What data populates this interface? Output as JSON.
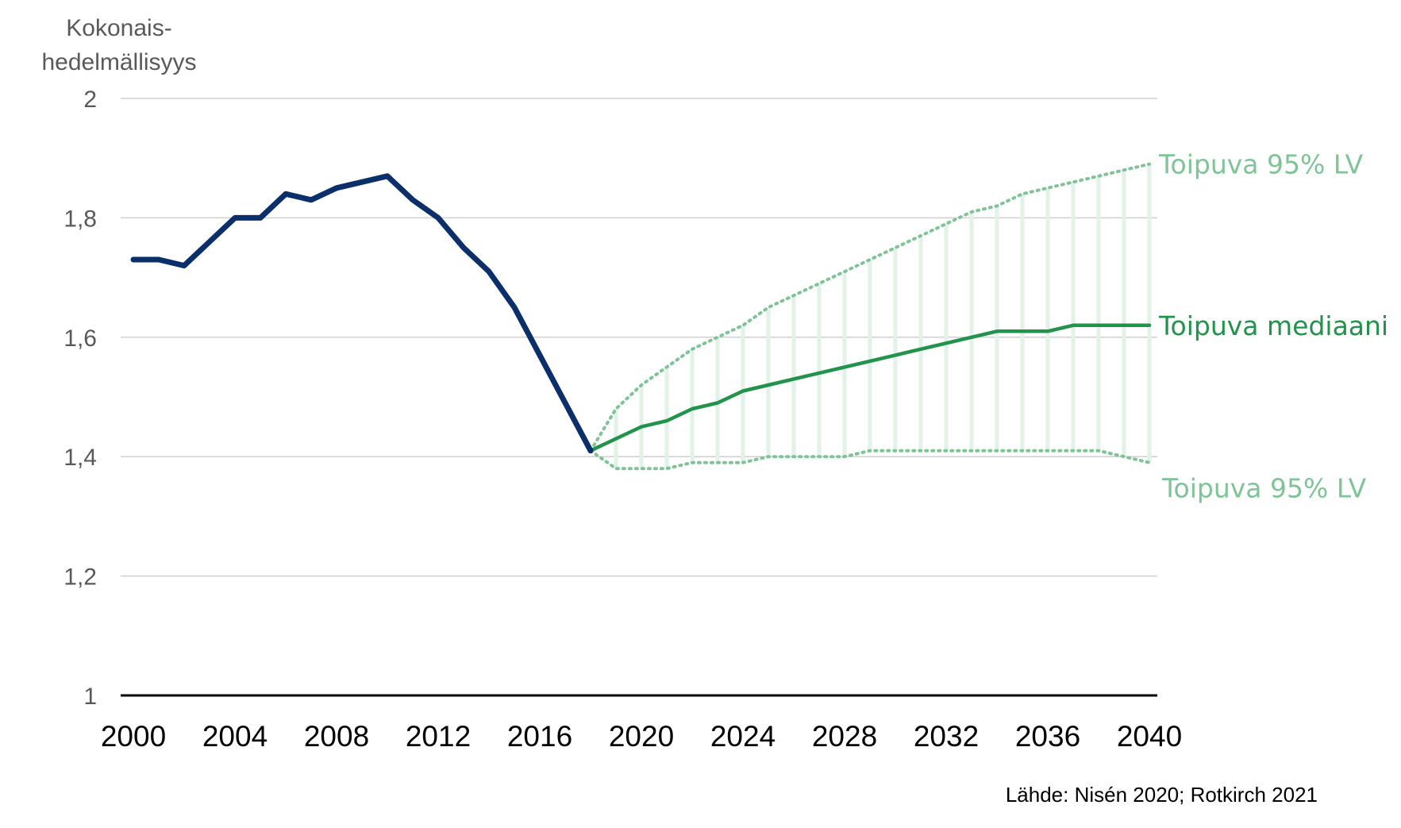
{
  "chart_data": {
    "type": "line",
    "ylabel_lines": [
      "Kokonais-",
      "hedelmällisyys"
    ],
    "xlabel": "",
    "ylim": [
      1,
      2
    ],
    "xlim": [
      2000,
      2040
    ],
    "yticks": [
      {
        "value": 1,
        "label": "1"
      },
      {
        "value": 1.2,
        "label": "1,2"
      },
      {
        "value": 1.4,
        "label": "1,4"
      },
      {
        "value": 1.6,
        "label": "1,6"
      },
      {
        "value": 1.8,
        "label": "1,8"
      },
      {
        "value": 2,
        "label": "2"
      }
    ],
    "xticks": [
      {
        "value": 2000,
        "label": "2000"
      },
      {
        "value": 2004,
        "label": "2004"
      },
      {
        "value": 2008,
        "label": "2008"
      },
      {
        "value": 2012,
        "label": "2012"
      },
      {
        "value": 2016,
        "label": "2016"
      },
      {
        "value": 2020,
        "label": "2020"
      },
      {
        "value": 2024,
        "label": "2024"
      },
      {
        "value": 2028,
        "label": "2028"
      },
      {
        "value": 2032,
        "label": "2032"
      },
      {
        "value": 2036,
        "label": "2036"
      },
      {
        "value": 2040,
        "label": "2040"
      }
    ],
    "grid": true,
    "series": [
      {
        "key": "observed",
        "color": "#0b2f6b",
        "style": "solid-thick",
        "x": [
          2000,
          2001,
          2002,
          2003,
          2004,
          2005,
          2006,
          2007,
          2008,
          2009,
          2010,
          2011,
          2012,
          2013,
          2014,
          2015,
          2016,
          2017,
          2018
        ],
        "y": [
          1.73,
          1.73,
          1.72,
          1.76,
          1.8,
          1.8,
          1.84,
          1.83,
          1.85,
          1.86,
          1.87,
          1.83,
          1.8,
          1.75,
          1.71,
          1.65,
          1.57,
          1.49,
          1.41
        ]
      },
      {
        "key": "upper",
        "name": "Toipuva 95% LV",
        "color": "#7fc497",
        "style": "dotted",
        "x": [
          2018,
          2019,
          2020,
          2021,
          2022,
          2023,
          2024,
          2025,
          2026,
          2027,
          2028,
          2029,
          2030,
          2031,
          2032,
          2033,
          2034,
          2035,
          2036,
          2037,
          2038,
          2039,
          2040
        ],
        "y": [
          1.41,
          1.48,
          1.52,
          1.55,
          1.58,
          1.6,
          1.62,
          1.65,
          1.67,
          1.69,
          1.71,
          1.73,
          1.75,
          1.77,
          1.79,
          1.81,
          1.82,
          1.84,
          1.85,
          1.86,
          1.87,
          1.88,
          1.89
        ]
      },
      {
        "key": "median",
        "name": "Toipuva mediaani",
        "color": "#22934a",
        "style": "solid",
        "x": [
          2018,
          2019,
          2020,
          2021,
          2022,
          2023,
          2024,
          2025,
          2026,
          2027,
          2028,
          2029,
          2030,
          2031,
          2032,
          2033,
          2034,
          2035,
          2036,
          2037,
          2038,
          2039,
          2040
        ],
        "y": [
          1.41,
          1.43,
          1.45,
          1.46,
          1.48,
          1.49,
          1.51,
          1.52,
          1.53,
          1.54,
          1.55,
          1.56,
          1.57,
          1.58,
          1.59,
          1.6,
          1.61,
          1.61,
          1.61,
          1.62,
          1.62,
          1.62,
          1.62
        ]
      },
      {
        "key": "lower",
        "name": "Toipuva 95% LV",
        "color": "#7fc497",
        "style": "dotted",
        "x": [
          2018,
          2019,
          2020,
          2021,
          2022,
          2023,
          2024,
          2025,
          2026,
          2027,
          2028,
          2029,
          2030,
          2031,
          2032,
          2033,
          2034,
          2035,
          2036,
          2037,
          2038,
          2039,
          2040
        ],
        "y": [
          1.41,
          1.38,
          1.38,
          1.38,
          1.39,
          1.39,
          1.39,
          1.4,
          1.4,
          1.4,
          1.4,
          1.41,
          1.41,
          1.41,
          1.41,
          1.41,
          1.41,
          1.41,
          1.41,
          1.41,
          1.41,
          1.4,
          1.39
        ]
      }
    ],
    "band_color": "#e3f2e8",
    "source": "Lähde: Nisén 2020; Rotkirch 2021"
  }
}
